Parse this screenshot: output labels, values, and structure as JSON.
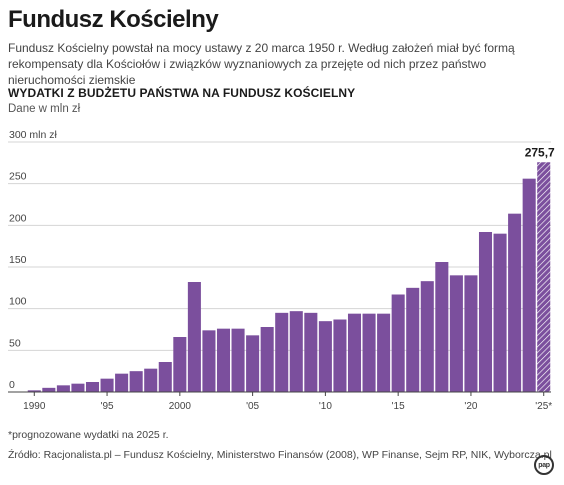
{
  "header": {
    "title": "Fundusz Kościelny",
    "lead": "Fundusz Kościelny powstał na mocy ustawy z 20 marca 1950 r. Według założeń miał być formą rekompensaty dla Kościołów i związków wyznaniowych za przejęte od nich przez państwo nieruchomości ziemskie",
    "subtitle": "WYDATKI Z BUDŻETU PAŃSTWA NA FUNDUSZ KOŚCIELNY",
    "unit_note": "Dane w mln zł"
  },
  "footer": {
    "footnote": "*prognozowane wydatki na 2025 r.",
    "source": "Źródło: Racjonalista.pl – Fundusz Kościelny, Ministerstwo Finansów (2008), WP Finanse, Sejm RP, NIK, Wyborcza.pl",
    "logo": "pap"
  },
  "chart_data": {
    "type": "bar",
    "x": [
      1990,
      1991,
      1992,
      1993,
      1994,
      1995,
      1996,
      1997,
      1998,
      1999,
      2000,
      2001,
      2002,
      2003,
      2004,
      2005,
      2006,
      2007,
      2008,
      2009,
      2010,
      2011,
      2012,
      2013,
      2014,
      2015,
      2016,
      2017,
      2018,
      2019,
      2020,
      2021,
      2022,
      2023,
      2024,
      2025
    ],
    "values": [
      2,
      5,
      8,
      10,
      12,
      16,
      22,
      25,
      28,
      36,
      66,
      132,
      74,
      76,
      76,
      68,
      78,
      95,
      97,
      95,
      85,
      87,
      94,
      94,
      94,
      117,
      125,
      133,
      156,
      140,
      140,
      192,
      190,
      214,
      256,
      275.7
    ],
    "forecast_years": [
      2025
    ],
    "annotation": {
      "x": 2025,
      "label": "275,7"
    },
    "ylim": [
      0,
      300
    ],
    "yticks": [
      0,
      50,
      100,
      150,
      200,
      250,
      300
    ],
    "ytick_labels": [
      "0",
      "50",
      "100",
      "150",
      "200",
      "250",
      "300 mln zł"
    ],
    "xticks": [
      1990,
      1995,
      2000,
      2005,
      2010,
      2015,
      2020,
      2025
    ],
    "xtick_labels": [
      "1990",
      "'95",
      "2000",
      "'05",
      "'10",
      "'15",
      "'20",
      "'25*"
    ],
    "grid": true,
    "colors": {
      "bar": "#7b4f9d",
      "forecast_stripe": "#ffffff",
      "grid": "#d4d4d4",
      "axis": "#444444"
    }
  }
}
